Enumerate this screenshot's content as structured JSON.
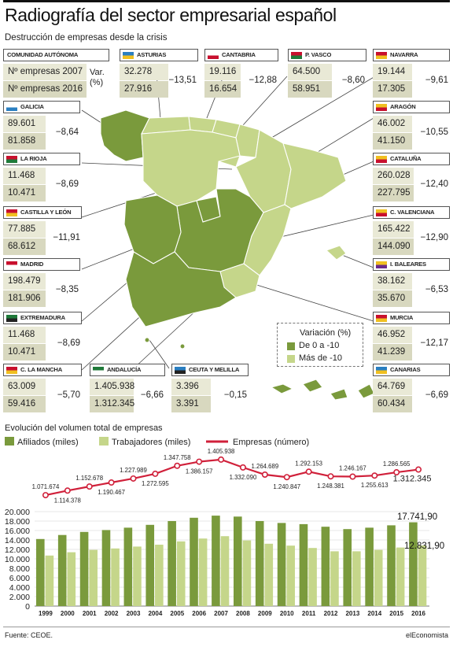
{
  "header": {
    "title": "Radiografía del sector empresarial español",
    "subtitle": "Destrucción de empresas desde la crisis"
  },
  "key_card": {
    "label": "COMUNIDAD AUTÓNOMA",
    "row1": "Nº empresas 2007",
    "row2": "Nº empresas 2016",
    "var_label": "Var. (%)"
  },
  "regions": [
    {
      "id": "asturias",
      "name": "ASTURIAS",
      "v2007": "32.278",
      "v2016": "27.916",
      "var": "−13,51"
    },
    {
      "id": "cantabria",
      "name": "CANTABRIA",
      "v2007": "19.116",
      "v2016": "16.654",
      "var": "−12,88"
    },
    {
      "id": "pvasco",
      "name": "P. VASCO",
      "v2007": "64.500",
      "v2016": "58.951",
      "var": "−8,60"
    },
    {
      "id": "navarra",
      "name": "NAVARRA",
      "v2007": "19.144",
      "v2016": "17.305",
      "var": "−9,61"
    },
    {
      "id": "galicia",
      "name": "GALICIA",
      "v2007": "89.601",
      "v2016": "81.858",
      "var": "−8,64"
    },
    {
      "id": "aragon",
      "name": "ARAGÓN",
      "v2007": "46.002",
      "v2016": "41.150",
      "var": "−10,55"
    },
    {
      "id": "larioja",
      "name": "LA RIOJA",
      "v2007": "11.468",
      "v2016": "10.471",
      "var": "−8,69"
    },
    {
      "id": "cataluna",
      "name": "CATALUÑA",
      "v2007": "260.028",
      "v2016": "227.795",
      "var": "−12,40"
    },
    {
      "id": "castillayleon",
      "name": "CASTILLA Y LEÓN",
      "v2007": "77.885",
      "v2016": "68.612",
      "var": "−11,91"
    },
    {
      "id": "cvalenciana",
      "name": "C. VALENCIANA",
      "v2007": "165.422",
      "v2016": "144.090",
      "var": "−12,90"
    },
    {
      "id": "madrid",
      "name": "MADRID",
      "v2007": "198.479",
      "v2016": "181.906",
      "var": "−8,35"
    },
    {
      "id": "baleares",
      "name": "I. BALEARES",
      "v2007": "38.162",
      "v2016": "35.670",
      "var": "−6,53"
    },
    {
      "id": "extremadura",
      "name": "EXTREMADURA",
      "v2007": "11.468",
      "v2016": "10.471",
      "var": "−8,69"
    },
    {
      "id": "murcia",
      "name": "MURCIA",
      "v2007": "46.952",
      "v2016": "41.239",
      "var": "−12,17"
    },
    {
      "id": "clamancha",
      "name": "C. LA MANCHA",
      "v2007": "63.009",
      "v2016": "59.416",
      "var": "−5,70"
    },
    {
      "id": "andalucia",
      "name": "ANDALUCÍA",
      "v2007": "1.405.938",
      "v2016": "1.312.345",
      "var": "−6,66"
    },
    {
      "id": "ceutamelilla",
      "name": "CEUTA Y MELILLA",
      "v2007": "3.396",
      "v2016": "3.391",
      "var": "−0,15"
    },
    {
      "id": "canarias",
      "name": "CANARIAS",
      "v2007": "64.769",
      "v2016": "60.434",
      "var": "−6,69"
    }
  ],
  "map_legend": {
    "title": "Variación (%)",
    "items": [
      {
        "label": "De 0 a -10",
        "color": "#7a9a3c"
      },
      {
        "label": "Más de -10",
        "color": "#c5d68a"
      }
    ]
  },
  "colors": {
    "dark_green": "#7a9a3c",
    "light_green": "#c5d68a",
    "line_red": "#d0203a",
    "card_light": "#e9e9d6",
    "card_dark": "#d8d8bf"
  },
  "chart_data": {
    "type": "bar",
    "title": "Evolución del volumen total de empresas",
    "categories": [
      "1999",
      "2000",
      "2001",
      "2002",
      "2003",
      "2004",
      "2005",
      "2006",
      "2007",
      "2008",
      "2009",
      "2010",
      "2011",
      "2012",
      "2013",
      "2014",
      "2015",
      "2016"
    ],
    "series": [
      {
        "name": "Afiliados (miles)",
        "color": "#7a9a3c",
        "values": [
          14200,
          15050,
          15700,
          16100,
          16600,
          17200,
          18000,
          18700,
          19150,
          18950,
          18000,
          17600,
          17350,
          16800,
          16300,
          16600,
          17100,
          17741.9
        ]
      },
      {
        "name": "Trabajadores (miles)",
        "color": "#c5d68a",
        "values": [
          10700,
          11400,
          11900,
          12200,
          12600,
          13000,
          13700,
          14300,
          14800,
          13900,
          13200,
          12800,
          12300,
          11600,
          11600,
          11900,
          12400,
          12831.9
        ]
      }
    ],
    "line_series": {
      "name": "Empresas (número)",
      "color": "#d0203a",
      "values": [
        1071674,
        1114378,
        1152678,
        1190467,
        1227989,
        1272595,
        1347758,
        1386157,
        1405938,
        1332090,
        1264689,
        1240847,
        1292153,
        1248381,
        1246167,
        1255613,
        1286565,
        1312345
      ],
      "labels": [
        "1.071.674",
        "1.114.378",
        "1.152.678",
        "1.190.467",
        "1.227.989",
        "1.272.595",
        "1.347.758",
        "1.386.157",
        "1.405.938",
        "1.332.090",
        "1.264.689",
        "1.240.847",
        "1.292.153",
        "1.248.381",
        "1.246.167",
        "1.255.613",
        "1.286.565",
        "1.312.345"
      ]
    },
    "yticks": [
      "0",
      "2.000",
      "4.000",
      "6.000",
      "8.000",
      "10.000",
      "12.000",
      "14.000",
      "16.000",
      "18.000",
      "20.000"
    ],
    "ylim": [
      0,
      20000
    ],
    "last_value_labels": {
      "afiliados": "17.741,90",
      "trabajadores": "12.831,90"
    },
    "grid": true,
    "legend_position": "top"
  },
  "footer": {
    "source": "Fuente: CEOE.",
    "brand": "elEconomista"
  }
}
